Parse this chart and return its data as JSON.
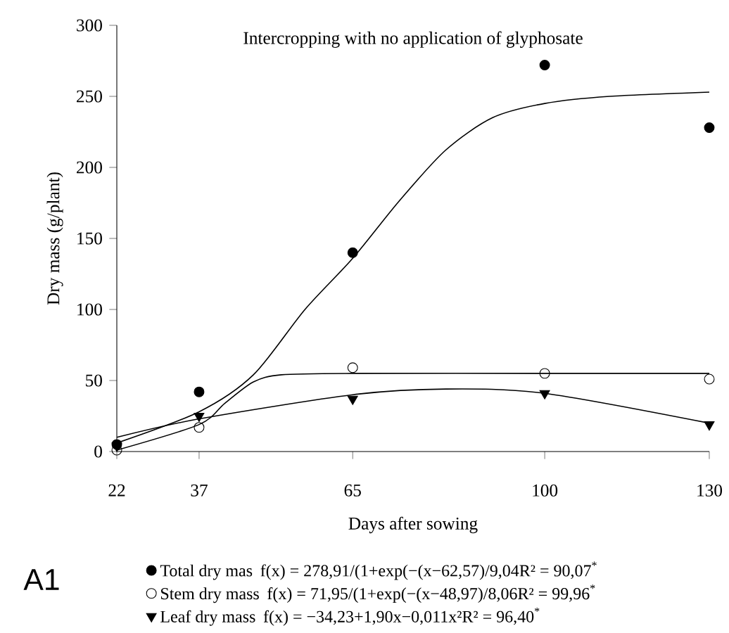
{
  "chart_data": {
    "type": "scatter",
    "title": "Intercropping with no application of glyphosate",
    "xlabel": "Days after sowing",
    "ylabel": "Dry mass (g/plant)",
    "x": [
      22,
      37,
      65,
      100,
      130
    ],
    "xlim": [
      22,
      130
    ],
    "xticks": [
      22,
      37,
      65,
      100,
      130
    ],
    "ylim": [
      0,
      300
    ],
    "yticks": [
      0,
      50,
      100,
      150,
      200,
      250,
      300
    ],
    "legend": "bottom",
    "series": [
      {
        "name": "Total dry mas",
        "color": "#000000",
        "marker": "circle",
        "values": [
          5,
          42,
          140,
          272,
          228
        ]
      },
      {
        "name": "Stem dry mass",
        "color": "#000000",
        "marker": "open circle",
        "values": [
          1,
          17,
          59,
          55,
          51
        ]
      },
      {
        "name": "Leaf dry mass",
        "color": "#000000",
        "marker": "triangle",
        "values": [
          4,
          25,
          37,
          41,
          19
        ]
      },
      {
        "type": "line",
        "color": "#000000",
        "marker": "none",
        "x": [
          22,
          37,
          46.9,
          56.3,
          65,
          73.4,
          81.9,
          90.5,
          100,
          111.8,
          130
        ],
        "values": [
          6,
          28,
          54,
          100,
          136,
          176,
          212,
          235,
          245,
          250,
          253
        ]
      },
      {
        "type": "line",
        "color": "#000000",
        "marker": "none",
        "x": [
          22,
          37,
          41.7,
          46.9,
          52,
          65,
          100,
          130
        ],
        "values": [
          1,
          19,
          34,
          49,
          54,
          55,
          55,
          55
        ]
      },
      {
        "type": "line",
        "color": "#000000",
        "marker": "none",
        "x": [
          22,
          37,
          65,
          82,
          100,
          130
        ],
        "values": [
          10,
          23,
          40,
          44,
          41,
          20
        ]
      }
    ],
    "annotations": [
      "f(x) = 278,91/(1+exp(−(x−62,57)/9,04R² = 90,07$^{*}$",
      "f(x) = 71,95/(1+exp(−(x−48,97)/8,06R² = 99,96$^{*}$",
      "f(x) = −34,23+1,90x−0,011x²R² = 96,40$^{*}$",
      "A1"
    ]
  }
}
